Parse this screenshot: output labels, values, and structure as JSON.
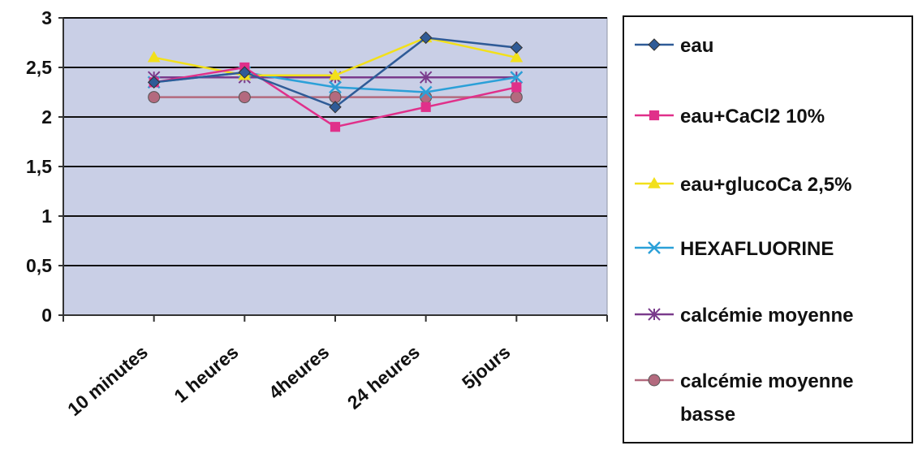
{
  "chart_data": {
    "type": "line",
    "title": "",
    "xlabel": "",
    "ylabel": "",
    "categories": [
      "10 minutes",
      "1 heures",
      "4heures",
      "24 heures",
      "5jours"
    ],
    "ylim": [
      0,
      3
    ],
    "yticks": [
      "0",
      "0,5",
      "1",
      "1,5",
      "2",
      "2,5",
      "3"
    ],
    "ytick_values": [
      0,
      0.5,
      1,
      1.5,
      2,
      2.5,
      3
    ],
    "grid": true,
    "legend": "right",
    "series": [
      {
        "name": "eau",
        "values": [
          2.35,
          2.45,
          2.1,
          2.8,
          2.7
        ],
        "color": "#2f5b97",
        "marker": "diamond"
      },
      {
        "name": "eau+CaCl2 10%",
        "values": [
          2.35,
          2.5,
          1.9,
          2.1,
          2.3
        ],
        "color": "#e0308a",
        "marker": "square"
      },
      {
        "name": "eau+glucoCa 2,5%",
        "values": [
          2.6,
          2.42,
          2.42,
          2.8,
          2.6
        ],
        "color": "#f2e01a",
        "marker": "triangle"
      },
      {
        "name": "HEXAFLUORINE",
        "values": [
          2.35,
          2.45,
          2.3,
          2.25,
          2.4
        ],
        "color": "#2ba0d8",
        "marker": "x"
      },
      {
        "name": "calcémie moyenne",
        "values": [
          2.4,
          2.4,
          2.4,
          2.4,
          2.4
        ],
        "color": "#7a3b8c",
        "marker": "star"
      },
      {
        "name": "calcémie moyenne basse",
        "values": [
          2.2,
          2.2,
          2.2,
          2.2,
          2.2
        ],
        "color": "#b36a7e",
        "marker": "circle"
      }
    ],
    "legend_lines": [
      [
        "eau"
      ],
      [
        "eau+CaCl2 10%"
      ],
      [
        "eau+glucoCa 2,5%"
      ],
      [
        "HEXAFLUORINE"
      ],
      [
        "calcémie moyenne"
      ],
      [
        "calcémie moyenne",
        "basse"
      ]
    ]
  }
}
